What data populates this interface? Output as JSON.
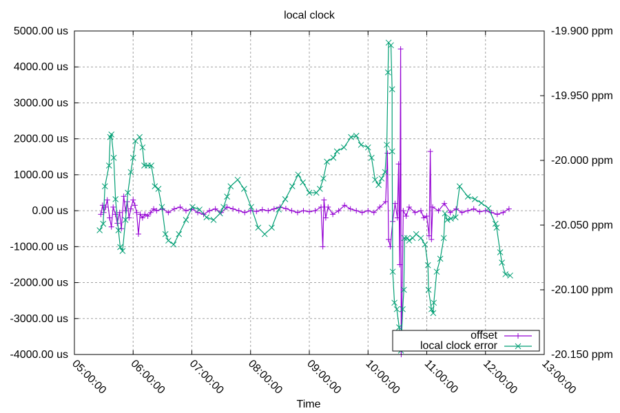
{
  "chart_data": {
    "type": "line",
    "title": "local clock",
    "xlabel": "Time",
    "ylabel": "",
    "y2label": "",
    "xlim": [
      5,
      13
    ],
    "ylim": [
      -4000,
      5000
    ],
    "y2lim": [
      -20.15,
      -19.9
    ],
    "grid": true,
    "legend_position": "bottom-right",
    "x_ticks": [
      {
        "value": 5,
        "label": "05:00:00"
      },
      {
        "value": 6,
        "label": "06:00:00"
      },
      {
        "value": 7,
        "label": "07:00:00"
      },
      {
        "value": 8,
        "label": "08:00:00"
      },
      {
        "value": 9,
        "label": "09:00:00"
      },
      {
        "value": 10,
        "label": "10:00:00"
      },
      {
        "value": 11,
        "label": "11:00:00"
      },
      {
        "value": 12,
        "label": "12:00:00"
      },
      {
        "value": 13,
        "label": "13:00:00"
      }
    ],
    "y_ticks": [
      {
        "value": 5000,
        "label": "5000.00 us"
      },
      {
        "value": 4000,
        "label": "4000.00 us"
      },
      {
        "value": 3000,
        "label": "3000.00 us"
      },
      {
        "value": 2000,
        "label": "2000.00 us"
      },
      {
        "value": 1000,
        "label": "1000.00 us"
      },
      {
        "value": 0,
        "label": "0.00 us"
      },
      {
        "value": -1000,
        "label": "-1000.00 us"
      },
      {
        "value": -2000,
        "label": "-2000.00 us"
      },
      {
        "value": -3000,
        "label": "-3000.00 us"
      },
      {
        "value": -4000,
        "label": "-4000.00 us"
      }
    ],
    "y2_ticks": [
      {
        "value": -19.9,
        "label": "-19.900 ppm"
      },
      {
        "value": -19.95,
        "label": "-19.950 ppm"
      },
      {
        "value": -20.0,
        "label": "-20.000 ppm"
      },
      {
        "value": -20.05,
        "label": "-20.050 ppm"
      },
      {
        "value": -20.1,
        "label": "-20.100 ppm"
      },
      {
        "value": -20.15,
        "label": "-20.150 ppm"
      }
    ],
    "series": [
      {
        "name": "offset",
        "axis": "y",
        "color": "#9400d3",
        "marker": "plus",
        "x": [
          5.45,
          5.48,
          5.5,
          5.53,
          5.56,
          5.6,
          5.63,
          5.66,
          5.7,
          5.73,
          5.77,
          5.8,
          5.84,
          5.87,
          5.9,
          5.93,
          5.96,
          6.0,
          6.03,
          6.06,
          6.09,
          6.12,
          6.16,
          6.2,
          6.25,
          6.3,
          6.35,
          6.4,
          6.5,
          6.6,
          6.7,
          6.8,
          6.9,
          7.0,
          7.1,
          7.2,
          7.3,
          7.4,
          7.5,
          7.6,
          7.7,
          7.8,
          7.9,
          8.0,
          8.1,
          8.2,
          8.3,
          8.4,
          8.5,
          8.6,
          8.7,
          8.8,
          8.9,
          9.0,
          9.1,
          9.2,
          9.23,
          9.25,
          9.28,
          9.32,
          9.4,
          9.5,
          9.6,
          9.7,
          9.8,
          9.9,
          10.0,
          10.1,
          10.2,
          10.3,
          10.33,
          10.35,
          10.38,
          10.42,
          10.46,
          10.5,
          10.52,
          10.54,
          10.555,
          10.565,
          10.6,
          10.65,
          10.7,
          10.8,
          10.9,
          10.95,
          11.0,
          11.04,
          11.06,
          11.08,
          11.1,
          11.2,
          11.3,
          11.4,
          11.5,
          11.6,
          11.7,
          11.8,
          11.9,
          12.0,
          12.1,
          12.2,
          12.3,
          12.4
        ],
        "y": [
          -100,
          150,
          -50,
          100,
          300,
          -200,
          -450,
          100,
          -100,
          -350,
          -50,
          -500,
          400,
          0,
          250,
          -200,
          50,
          300,
          150,
          -50,
          -650,
          -100,
          -200,
          -100,
          -150,
          -50,
          50,
          0,
          50,
          -50,
          50,
          100,
          0,
          50,
          -50,
          -100,
          0,
          50,
          -50,
          100,
          50,
          0,
          -50,
          0,
          -20,
          30,
          0,
          50,
          100,
          60,
          0,
          -50,
          0,
          -30,
          0,
          100,
          -1000,
          300,
          -200,
          100,
          -100,
          0,
          150,
          50,
          0,
          -50,
          0,
          -50,
          100,
          250,
          1600,
          -800,
          -1000,
          -300,
          200,
          -200,
          1300,
          -1500,
          4500,
          -4000,
          0,
          -150,
          100,
          -50,
          0,
          -200,
          -150,
          -700,
          1650,
          -800,
          100,
          0,
          200,
          -50,
          50,
          -50,
          0,
          50,
          -30,
          0,
          -50,
          -100,
          -50,
          50
        ]
      },
      {
        "name": "local clock error",
        "axis": "y2",
        "color": "#009e73",
        "marker": "cross",
        "x": [
          5.43,
          5.49,
          5.52,
          5.59,
          5.61,
          5.63,
          5.67,
          5.7,
          5.75,
          5.78,
          5.82,
          5.87,
          5.91,
          5.96,
          6.0,
          6.04,
          6.11,
          6.16,
          6.19,
          6.25,
          6.31,
          6.37,
          6.43,
          6.49,
          6.55,
          6.6,
          6.69,
          6.78,
          6.9,
          7.01,
          7.13,
          7.25,
          7.37,
          7.48,
          7.54,
          7.6,
          7.66,
          7.78,
          7.89,
          8.01,
          8.13,
          8.24,
          8.36,
          8.48,
          8.59,
          8.71,
          8.81,
          8.89,
          9.0,
          9.12,
          9.18,
          9.24,
          9.3,
          9.41,
          9.47,
          9.59,
          9.71,
          9.8,
          9.88,
          10.0,
          10.06,
          10.12,
          10.18,
          10.23,
          10.29,
          10.32,
          10.34,
          10.35,
          10.39,
          10.41,
          10.41,
          10.42,
          10.45,
          10.49,
          10.53,
          10.56,
          10.59,
          10.61,
          10.62,
          10.67,
          10.7,
          10.76,
          10.82,
          10.9,
          10.97,
          11.02,
          11.03,
          11.08,
          11.11,
          11.12,
          11.17,
          11.23,
          11.29,
          11.31,
          11.35,
          11.41,
          11.49,
          11.56,
          11.7,
          11.82,
          11.93,
          12.05,
          12.17,
          12.19,
          12.25,
          12.28,
          12.34,
          12.42
        ],
        "y": [
          -20.054,
          -20.049,
          -20.02,
          -20.004,
          -19.982,
          -19.98,
          -19.998,
          -20.03,
          -20.054,
          -20.067,
          -20.07,
          -20.046,
          -20.025,
          -20.009,
          -19.998,
          -19.985,
          -19.982,
          -19.99,
          -20.004,
          -20.004,
          -20.004,
          -20.02,
          -20.022,
          -20.036,
          -20.057,
          -20.062,
          -20.065,
          -20.057,
          -20.046,
          -20.036,
          -20.038,
          -20.044,
          -20.046,
          -20.041,
          -20.036,
          -20.028,
          -20.02,
          -20.015,
          -20.022,
          -20.036,
          -20.052,
          -20.057,
          -20.052,
          -20.038,
          -20.03,
          -20.02,
          -20.011,
          -20.017,
          -20.025,
          -20.025,
          -20.022,
          -20.014,
          -20.001,
          -19.998,
          -19.993,
          -19.99,
          -19.982,
          -19.981,
          -19.988,
          -19.99,
          -19.998,
          -20.015,
          -20.019,
          -20.014,
          -20.009,
          -19.988,
          -19.932,
          -19.909,
          -19.911,
          -19.945,
          -19.993,
          -20.086,
          -20.11,
          -20.115,
          -20.129,
          -20.147,
          -20.115,
          -20.1,
          -20.06,
          -20.06,
          -20.062,
          -20.06,
          -20.057,
          -20.06,
          -20.065,
          -20.081,
          -20.1,
          -20.115,
          -20.118,
          -20.11,
          -20.086,
          -20.076,
          -20.06,
          -20.041,
          -20.046,
          -20.045,
          -20.044,
          -20.02,
          -20.028,
          -20.03,
          -20.033,
          -20.037,
          -20.049,
          -20.052,
          -20.071,
          -20.079,
          -20.088,
          -20.089
        ]
      }
    ]
  }
}
